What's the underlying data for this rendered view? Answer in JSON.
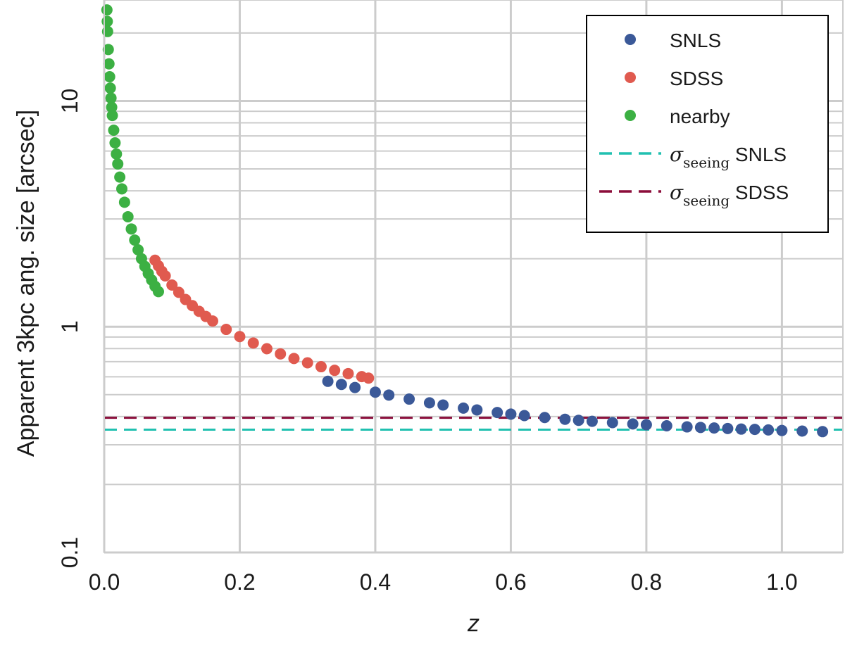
{
  "chart_data": {
    "type": "scatter",
    "title": "",
    "xlabel": "z",
    "ylabel": "Apparent 3kpc ang. size [arcsec]",
    "xlim": [
      0.0,
      1.09
    ],
    "ylim": [
      0.1,
      28
    ],
    "yscale": "log",
    "grid": true,
    "legend_position": "top-right",
    "x_ticks": [
      0.0,
      0.2,
      0.4,
      0.6,
      0.8,
      1.0
    ],
    "x_tick_labels": [
      "0.0",
      "0.2",
      "0.4",
      "0.6",
      "0.8",
      "1.0"
    ],
    "y_ticks": [
      0.1,
      1,
      10
    ],
    "y_tick_labels": [
      "0.1",
      "1",
      "10"
    ],
    "series": [
      {
        "name": "SNLS",
        "kind": "scatter",
        "color": "#3b5998",
        "x": [
          0.33,
          0.35,
          0.37,
          0.4,
          0.42,
          0.45,
          0.48,
          0.5,
          0.53,
          0.55,
          0.58,
          0.6,
          0.62,
          0.65,
          0.68,
          0.7,
          0.72,
          0.75,
          0.78,
          0.8,
          0.83,
          0.86,
          0.88,
          0.9,
          0.92,
          0.94,
          0.96,
          0.98,
          1.0,
          1.03,
          1.06
        ],
        "y": [
          0.573,
          0.555,
          0.538,
          0.513,
          0.498,
          0.478,
          0.46,
          0.45,
          0.436,
          0.428,
          0.417,
          0.41,
          0.404,
          0.396,
          0.389,
          0.385,
          0.381,
          0.376,
          0.371,
          0.368,
          0.364,
          0.36,
          0.358,
          0.356,
          0.354,
          0.352,
          0.351,
          0.349,
          0.347,
          0.345,
          0.343
        ]
      },
      {
        "name": "SDSS",
        "kind": "scatter",
        "color": "#e05a4f",
        "x": [
          0.075,
          0.08,
          0.085,
          0.09,
          0.1,
          0.11,
          0.12,
          0.13,
          0.14,
          0.15,
          0.16,
          0.18,
          0.2,
          0.22,
          0.24,
          0.26,
          0.28,
          0.3,
          0.32,
          0.34,
          0.36,
          0.38,
          0.39
        ],
        "y": [
          1.97,
          1.86,
          1.76,
          1.68,
          1.53,
          1.42,
          1.32,
          1.24,
          1.17,
          1.11,
          1.06,
          0.973,
          0.904,
          0.847,
          0.799,
          0.758,
          0.723,
          0.692,
          0.665,
          0.641,
          0.62,
          0.601,
          0.592
        ]
      },
      {
        "name": "nearby",
        "kind": "scatter",
        "color": "#3cb043",
        "x": [
          0.004,
          0.0045,
          0.005,
          0.006,
          0.007,
          0.008,
          0.009,
          0.01,
          0.011,
          0.012,
          0.014,
          0.016,
          0.018,
          0.02,
          0.023,
          0.026,
          0.03,
          0.035,
          0.04,
          0.045,
          0.05,
          0.055,
          0.06,
          0.065,
          0.07,
          0.075,
          0.08
        ],
        "y": [
          25.3,
          22.5,
          20.3,
          16.9,
          14.6,
          12.8,
          11.4,
          10.3,
          9.38,
          8.62,
          7.42,
          6.52,
          5.82,
          5.26,
          4.6,
          4.08,
          3.56,
          3.07,
          2.71,
          2.42,
          2.19,
          2.0,
          1.85,
          1.72,
          1.61,
          1.51,
          1.43
        ]
      },
      {
        "name": "σseeing SNLS",
        "kind": "hline",
        "color": "#20c0b0",
        "value": 0.35
      },
      {
        "name": "σseeing SDSS",
        "kind": "hline",
        "color": "#8b0d3a",
        "value": 0.395
      }
    ],
    "legend": {
      "items": [
        {
          "label": "SNLS",
          "marker": "dot",
          "color": "#3b5998"
        },
        {
          "label": "SDSS",
          "marker": "dot",
          "color": "#e05a4f"
        },
        {
          "label": "nearby",
          "marker": "dot",
          "color": "#3cb043"
        },
        {
          "sigma": "σ",
          "sub": "seeing",
          "label": "SNLS",
          "marker": "dash",
          "color": "#20c0b0"
        },
        {
          "sigma": "σ",
          "sub": "seeing",
          "label": "SDSS",
          "marker": "dash",
          "color": "#8b0d3a"
        }
      ]
    }
  }
}
